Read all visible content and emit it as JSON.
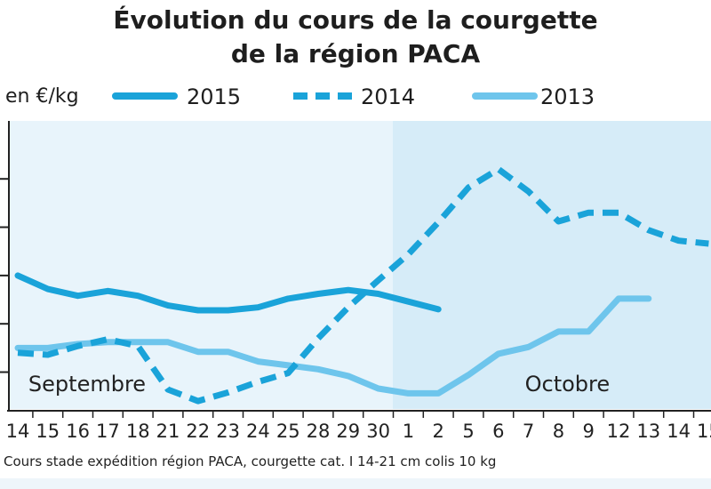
{
  "title_line1": "Évolution du cours de la courgette",
  "title_line2": "de la région PACA",
  "footer_text": "Cours stade expédition région PACA, courgette cat. I 14-21 cm colis 10 kg",
  "chart_data": {
    "type": "line",
    "ylabel": "en €/kg",
    "categories": [
      "14",
      "15",
      "16",
      "17",
      "18",
      "21",
      "22",
      "23",
      "24",
      "25",
      "28",
      "29",
      "30",
      "1",
      "2",
      "5",
      "6",
      "7",
      "8",
      "9",
      "12",
      "13",
      "14",
      "15"
    ],
    "period_labels": [
      {
        "text": "Septembre",
        "from_index": 0,
        "to_index": 12
      },
      {
        "text": "Octobre",
        "from_index": 13,
        "to_index": 23
      }
    ],
    "y_range": [
      0.6,
      3.6
    ],
    "y_gridlines": [
      1.0,
      1.5,
      2.0,
      2.5,
      3.0
    ],
    "y_ticks_labeled": false,
    "legend_position": "top",
    "series": [
      {
        "name": "2015",
        "style": "solid",
        "color": "#1aa3d9",
        "values": [
          2.0,
          1.86,
          1.79,
          1.84,
          1.79,
          1.69,
          1.64,
          1.64,
          1.67,
          1.76,
          1.81,
          1.85,
          1.81,
          1.73,
          1.65,
          null,
          null,
          null,
          null,
          null,
          null,
          null,
          null,
          null
        ]
      },
      {
        "name": "2014",
        "style": "dashed",
        "color": "#1aa3d9",
        "values": [
          1.2,
          1.18,
          1.27,
          1.34,
          1.27,
          0.82,
          0.7,
          0.79,
          0.9,
          0.99,
          1.35,
          1.67,
          1.95,
          2.22,
          2.55,
          2.91,
          3.1,
          2.87,
          2.56,
          2.65,
          2.65,
          2.47,
          2.36,
          2.33
        ]
      },
      {
        "name": "2013",
        "style": "solid",
        "color": "#6ec5ec",
        "values": [
          1.25,
          1.25,
          1.29,
          1.31,
          1.31,
          1.31,
          1.21,
          1.21,
          1.11,
          1.07,
          1.03,
          0.96,
          0.83,
          0.78,
          0.78,
          0.97,
          1.19,
          1.26,
          1.42,
          1.42,
          1.76,
          1.76,
          null,
          null
        ]
      }
    ]
  }
}
